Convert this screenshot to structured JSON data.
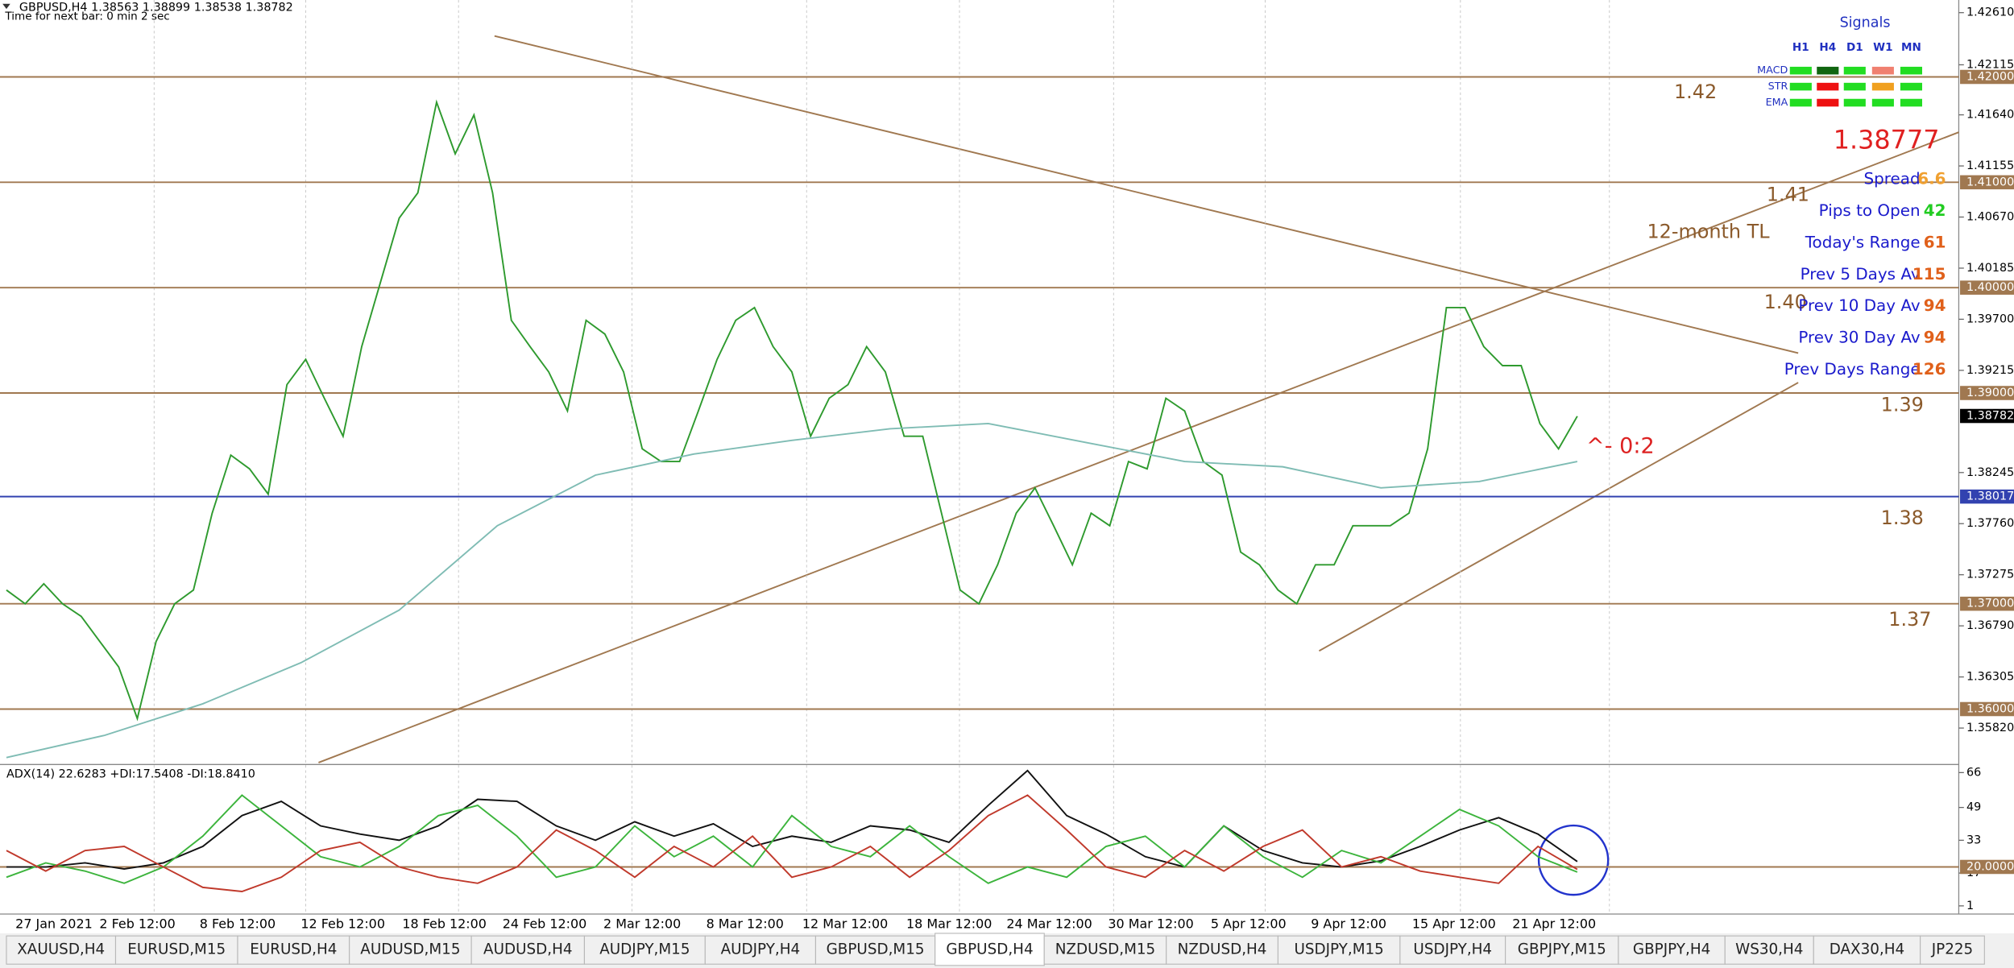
{
  "chart_data": [
    {
      "type": "line",
      "title": "GBPUSD,H4  1.38563 1.38899 1.38538 1.38782",
      "subtitle": "Time for next bar: 0 min 2 sec",
      "ylim": [
        1.3548,
        1.4273
      ],
      "yticks": [
        {
          "value": 1.4261,
          "label": "1.42610"
        },
        {
          "value": 1.42115,
          "label": "1.42115"
        },
        {
          "value": 1.4164,
          "label": "1.41640"
        },
        {
          "value": 1.41155,
          "label": "1.41155"
        },
        {
          "value": 1.4067,
          "label": "1.40670"
        },
        {
          "value": 1.40185,
          "label": "1.40185"
        },
        {
          "value": 1.397,
          "label": "1.39700"
        },
        {
          "value": 1.39215,
          "label": "1.39215"
        },
        {
          "value": 1.38245,
          "label": "1.38245"
        },
        {
          "value": 1.3776,
          "label": "1.37760"
        },
        {
          "value": 1.37275,
          "label": "1.37275"
        },
        {
          "value": 1.3679,
          "label": "1.36790"
        },
        {
          "value": 1.36305,
          "label": "1.36305"
        },
        {
          "value": 1.3582,
          "label": "1.35820"
        }
      ],
      "levels": [
        {
          "value": 1.42,
          "label": "1.42000",
          "color": "#a07850"
        },
        {
          "value": 1.41,
          "label": "1.41000",
          "color": "#a07850"
        },
        {
          "value": 1.4,
          "label": "1.40000",
          "color": "#a07850"
        },
        {
          "value": 1.39,
          "label": "1.39000",
          "color": "#a07850"
        },
        {
          "value": 1.38017,
          "label": "1.38017",
          "color": "#3242b0"
        },
        {
          "value": 1.37,
          "label": "1.37000",
          "color": "#a07850"
        },
        {
          "value": 1.36,
          "label": "1.36000",
          "color": "#a07850"
        }
      ],
      "current_price": {
        "value": 1.38782,
        "label": "1.38782"
      },
      "level_notes": [
        "1.42",
        "1.41",
        "1.40",
        "1.39",
        "1.38",
        "1.37"
      ],
      "annotations": [
        "12-month TL",
        "^- 0:2"
      ],
      "series": [
        {
          "color": "#2e9a2e",
          "values": [
            1.3713,
            1.37,
            1.3719,
            1.37,
            1.3688,
            1.3664,
            1.364,
            1.3591,
            1.3664,
            1.37,
            1.3713,
            1.3786,
            1.3841,
            1.3828,
            1.3804,
            1.3908,
            1.3932,
            1.3895,
            1.3859,
            1.3944,
            1.4005,
            1.4066,
            1.409,
            1.4176,
            1.4127,
            1.4164,
            1.409,
            1.3969,
            1.3944,
            1.392,
            1.3883,
            1.3969,
            1.3956,
            1.392,
            1.3847,
            1.3835,
            1.3835,
            1.3883,
            1.3932,
            1.3969,
            1.3981,
            1.3944,
            1.392,
            1.3859,
            1.3895,
            1.3908,
            1.3944,
            1.392,
            1.3859,
            1.3859,
            1.3786,
            1.3713,
            1.37,
            1.3737,
            1.3786,
            1.381,
            1.3774,
            1.3737,
            1.3786,
            1.3774,
            1.3835,
            1.3828,
            1.3895,
            1.3883,
            1.3835,
            1.3822,
            1.3749,
            1.3737,
            1.3713,
            1.37,
            1.3737,
            1.3737,
            1.3774,
            1.3774,
            1.3774,
            1.3786,
            1.3847,
            1.3981,
            1.3981,
            1.3944,
            1.3926,
            1.3926,
            1.3871,
            1.3847,
            1.3878
          ]
        },
        {
          "color": "#7fbcb4",
          "values": [
            1.3554,
            1.3575,
            1.3605,
            1.3644,
            1.3694,
            1.3774,
            1.3822,
            1.3842,
            1.3855,
            1.3866,
            1.3871,
            1.3853,
            1.3835,
            1.383,
            1.381,
            1.3816,
            1.3835
          ]
        }
      ]
    },
    {
      "type": "line",
      "title": "ADX(14) 22.6283 +DI:17.5408 -DI:18.8410",
      "ylim": [
        -3,
        69
      ],
      "yticks": [
        66,
        49,
        33,
        17,
        1
      ],
      "level": {
        "value": 20,
        "label": "20.0000",
        "color": "#a07850"
      },
      "x_tick_labels": [
        "27 Jan 2021",
        "2 Feb 12:00",
        "8 Feb 12:00",
        "12 Feb 12:00",
        "18 Feb 12:00",
        "24 Feb 12:00",
        "2 Mar 12:00",
        "8 Mar 12:00",
        "12 Mar 12:00",
        "18 Mar 12:00",
        "24 Mar 12:00",
        "30 Mar 12:00",
        "5 Apr 12:00",
        "9 Apr 12:00",
        "15 Apr 12:00",
        "21 Apr 12:00"
      ],
      "series": [
        {
          "color": "#111111",
          "values": [
            20,
            20,
            22,
            19,
            22,
            30,
            45,
            52,
            40,
            36,
            33,
            40,
            53,
            52,
            40,
            33,
            42,
            35,
            41,
            30,
            35,
            32,
            40,
            38,
            32,
            50,
            67,
            45,
            36,
            25,
            20,
            40,
            28,
            22,
            20,
            23,
            30,
            38,
            44,
            36,
            22.6
          ]
        },
        {
          "color": "#3cb43c",
          "values": [
            15,
            22,
            18,
            12,
            20,
            35,
            55,
            40,
            25,
            20,
            30,
            45,
            50,
            35,
            15,
            20,
            40,
            25,
            35,
            20,
            45,
            30,
            25,
            40,
            25,
            12,
            20,
            15,
            30,
            35,
            20,
            40,
            25,
            15,
            28,
            22,
            35,
            48,
            40,
            25,
            17.5
          ]
        },
        {
          "color": "#c0392b",
          "values": [
            28,
            18,
            28,
            30,
            20,
            10,
            8,
            15,
            28,
            32,
            20,
            15,
            12,
            20,
            38,
            28,
            15,
            30,
            20,
            35,
            15,
            20,
            30,
            15,
            28,
            45,
            55,
            38,
            20,
            15,
            28,
            18,
            30,
            38,
            20,
            25,
            18,
            15,
            12,
            30,
            18.8
          ]
        }
      ]
    }
  ],
  "signals_panel": {
    "title": "Signals",
    "columns": [
      "H1",
      "H4",
      "D1",
      "W1",
      "MN"
    ],
    "rows": [
      {
        "label": "MACD",
        "colors": [
          "#22dd22",
          "#116611",
          "#22dd22",
          "#f08070",
          "#22dd22"
        ]
      },
      {
        "label": "STR",
        "colors": [
          "#22dd22",
          "#ee1111",
          "#22dd22",
          "#f0a020",
          "#22dd22"
        ]
      },
      {
        "label": "EMA",
        "colors": [
          "#22dd22",
          "#ee1111",
          "#22dd22",
          "#22dd22",
          "#22dd22"
        ]
      }
    ]
  },
  "info_panel": {
    "quote": 1.38777,
    "rows": [
      {
        "label": "Spread",
        "value": 6.6,
        "color": "#f0a030"
      },
      {
        "label": "Pips to Open",
        "value": 42,
        "color": "#22cc22"
      },
      {
        "label": "Today's Range",
        "value": 61,
        "color": "#e0601a"
      },
      {
        "label": "Prev 5 Days Av",
        "value": 115,
        "color": "#e0601a"
      },
      {
        "label": "Prev 10 Day Av",
        "value": 94,
        "color": "#e0601a"
      },
      {
        "label": "Prev 30 Day Av",
        "value": 94,
        "color": "#e0601a"
      },
      {
        "label": "Prev Days Range",
        "value": 126,
        "color": "#e0601a"
      }
    ]
  },
  "tabs": [
    "XAUUSD,H4",
    "EURUSD,M15",
    "EURUSD,H4",
    "AUDUSD,M15",
    "AUDUSD,H4",
    "AUDJPY,M15",
    "AUDJPY,H4",
    "GBPUSD,M15",
    "GBPUSD,H4",
    "NZDUSD,M15",
    "NZDUSD,H4",
    "USDJPY,M15",
    "USDJPY,H4",
    "GBPJPY,M15",
    "GBPJPY,H4",
    "WS30,H4",
    "DAX30,H4",
    "JP225"
  ]
}
